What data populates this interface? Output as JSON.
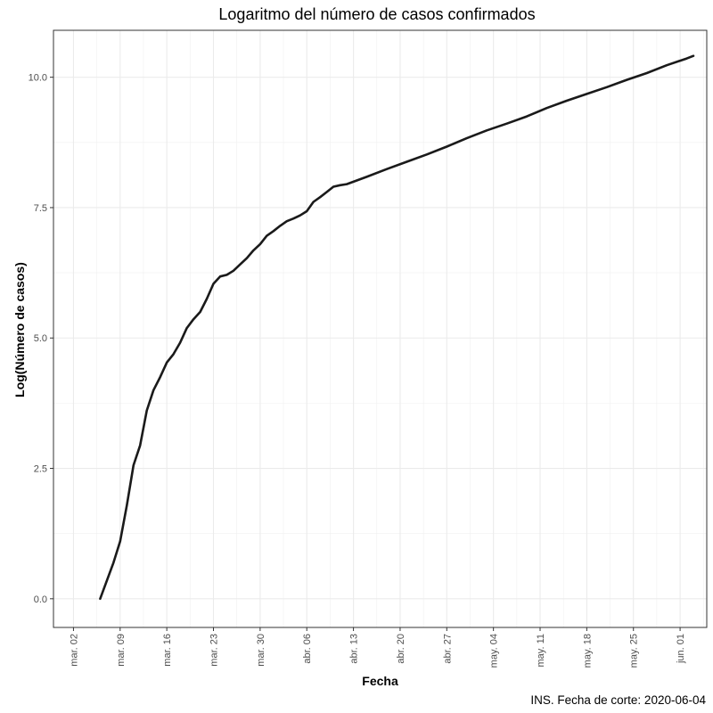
{
  "chart_data": {
    "type": "line",
    "title": "Logaritmo del número de casos confirmados",
    "xlabel": "Fecha",
    "ylabel": "Log(Número de casos)",
    "caption": "INS. Fecha de corte: 2020-06-04",
    "ylim": [
      -0.55,
      10.9
    ],
    "xlim": [
      "2020-02-28",
      "2020-06-05"
    ],
    "yticks": [
      0.0,
      2.5,
      5.0,
      7.5,
      10.0
    ],
    "ytick_labels": [
      "0.0",
      "2.5",
      "5.0",
      "7.5",
      "10.0"
    ],
    "xticks": [
      "2020-03-02",
      "2020-03-09",
      "2020-03-16",
      "2020-03-23",
      "2020-03-30",
      "2020-04-06",
      "2020-04-13",
      "2020-04-20",
      "2020-04-27",
      "2020-05-04",
      "2020-05-11",
      "2020-05-18",
      "2020-05-25",
      "2020-06-01"
    ],
    "xtick_labels": [
      "mar. 02",
      "mar. 09",
      "mar. 16",
      "mar. 23",
      "mar. 30",
      "abr. 06",
      "abr. 13",
      "abr. 20",
      "abr. 27",
      "may. 04",
      "may. 11",
      "may. 18",
      "may. 25",
      "jun. 01"
    ],
    "grid": true,
    "line_color": "#1a1a1a",
    "series": [
      {
        "x": [
          "2020-03-06",
          "2020-03-08",
          "2020-03-09",
          "2020-03-10",
          "2020-03-11",
          "2020-03-12",
          "2020-03-13",
          "2020-03-14",
          "2020-03-15",
          "2020-03-16",
          "2020-03-17",
          "2020-03-18",
          "2020-03-19",
          "2020-03-20",
          "2020-03-21",
          "2020-03-22",
          "2020-03-23",
          "2020-03-24",
          "2020-03-25",
          "2020-03-26",
          "2020-03-27",
          "2020-03-28",
          "2020-03-29",
          "2020-03-30",
          "2020-03-31",
          "2020-04-01",
          "2020-04-02",
          "2020-04-03",
          "2020-04-04",
          "2020-04-05",
          "2020-04-06",
          "2020-04-07",
          "2020-04-08",
          "2020-04-09",
          "2020-04-10",
          "2020-04-11",
          "2020-04-12",
          "2020-04-15",
          "2020-04-18",
          "2020-04-21",
          "2020-04-24",
          "2020-04-27",
          "2020-04-30",
          "2020-05-03",
          "2020-05-06",
          "2020-05-09",
          "2020-05-12",
          "2020-05-15",
          "2020-05-18",
          "2020-05-21",
          "2020-05-24",
          "2020-05-27",
          "2020-05-30",
          "2020-06-02",
          "2020-06-03"
        ],
        "values": [
          0.0,
          0.69,
          1.1,
          1.79,
          2.56,
          2.94,
          3.61,
          4.0,
          4.25,
          4.53,
          4.69,
          4.91,
          5.19,
          5.36,
          5.5,
          5.75,
          6.04,
          6.18,
          6.21,
          6.29,
          6.41,
          6.53,
          6.68,
          6.8,
          6.96,
          7.05,
          7.15,
          7.24,
          7.29,
          7.35,
          7.43,
          7.61,
          7.7,
          7.8,
          7.9,
          7.93,
          7.95,
          8.09,
          8.24,
          8.38,
          8.52,
          8.67,
          8.83,
          8.98,
          9.11,
          9.25,
          9.41,
          9.55,
          9.68,
          9.81,
          9.95,
          10.08,
          10.23,
          10.36,
          10.41
        ]
      }
    ]
  }
}
